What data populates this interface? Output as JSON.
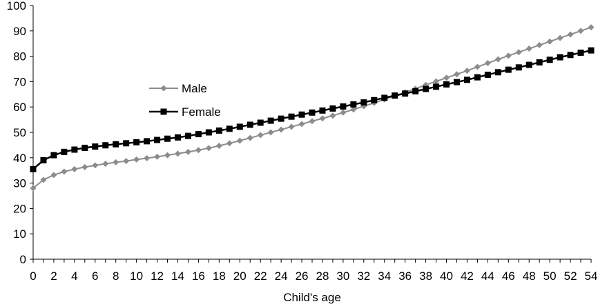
{
  "chart_data": {
    "type": "line",
    "title": "",
    "xlabel": "Child's age",
    "ylabel": "",
    "ylim": [
      0,
      100
    ],
    "xlim": [
      0,
      54
    ],
    "y_ticks": [
      0,
      10,
      20,
      30,
      40,
      50,
      60,
      70,
      80,
      90,
      100
    ],
    "x_ticks": [
      0,
      2,
      4,
      6,
      8,
      10,
      12,
      14,
      16,
      18,
      20,
      22,
      24,
      26,
      28,
      30,
      32,
      34,
      36,
      38,
      40,
      42,
      44,
      46,
      48,
      50,
      52,
      54
    ],
    "grid": false,
    "legend_position": "upper-left-inside",
    "x": [
      0,
      1,
      2,
      3,
      4,
      5,
      6,
      7,
      8,
      9,
      10,
      11,
      12,
      13,
      14,
      15,
      16,
      17,
      18,
      19,
      20,
      21,
      22,
      23,
      24,
      25,
      26,
      27,
      28,
      29,
      30,
      31,
      32,
      33,
      34,
      35,
      36,
      37,
      38,
      39,
      40,
      41,
      42,
      43,
      44,
      45,
      46,
      47,
      48,
      49,
      50,
      51,
      52,
      53,
      54
    ],
    "series": [
      {
        "name": "Male",
        "color": "#8c8c8c",
        "marker": "diamond",
        "values": [
          28.0,
          31.3,
          33.2,
          34.5,
          35.5,
          36.3,
          37.0,
          37.6,
          38.2,
          38.7,
          39.3,
          39.8,
          40.4,
          41.0,
          41.6,
          42.3,
          43.0,
          43.8,
          44.7,
          45.7,
          46.7,
          47.8,
          48.9,
          50.0,
          51.1,
          52.2,
          53.3,
          54.4,
          55.5,
          56.6,
          57.8,
          59.0,
          60.3,
          61.6,
          63.0,
          64.4,
          65.8,
          67.2,
          68.7,
          70.1,
          71.5,
          72.9,
          74.3,
          75.8,
          77.3,
          78.8,
          80.2,
          81.6,
          83.0,
          84.4,
          85.8,
          87.2,
          88.6,
          90.0,
          91.4
        ]
      },
      {
        "name": "Female",
        "color": "#000000",
        "marker": "square",
        "values": [
          35.5,
          39.0,
          41.0,
          42.3,
          43.2,
          43.9,
          44.4,
          44.9,
          45.3,
          45.7,
          46.1,
          46.5,
          47.0,
          47.5,
          48.0,
          48.6,
          49.3,
          50.0,
          50.7,
          51.4,
          52.2,
          53.0,
          53.8,
          54.6,
          55.4,
          56.2,
          57.0,
          57.8,
          58.6,
          59.4,
          60.2,
          61.0,
          61.8,
          62.7,
          63.6,
          64.5,
          65.3,
          66.2,
          67.1,
          68.0,
          68.9,
          69.8,
          70.7,
          71.7,
          72.7,
          73.7,
          74.7,
          75.6,
          76.6,
          77.6,
          78.6,
          79.6,
          80.5,
          81.4,
          82.3
        ]
      }
    ]
  }
}
